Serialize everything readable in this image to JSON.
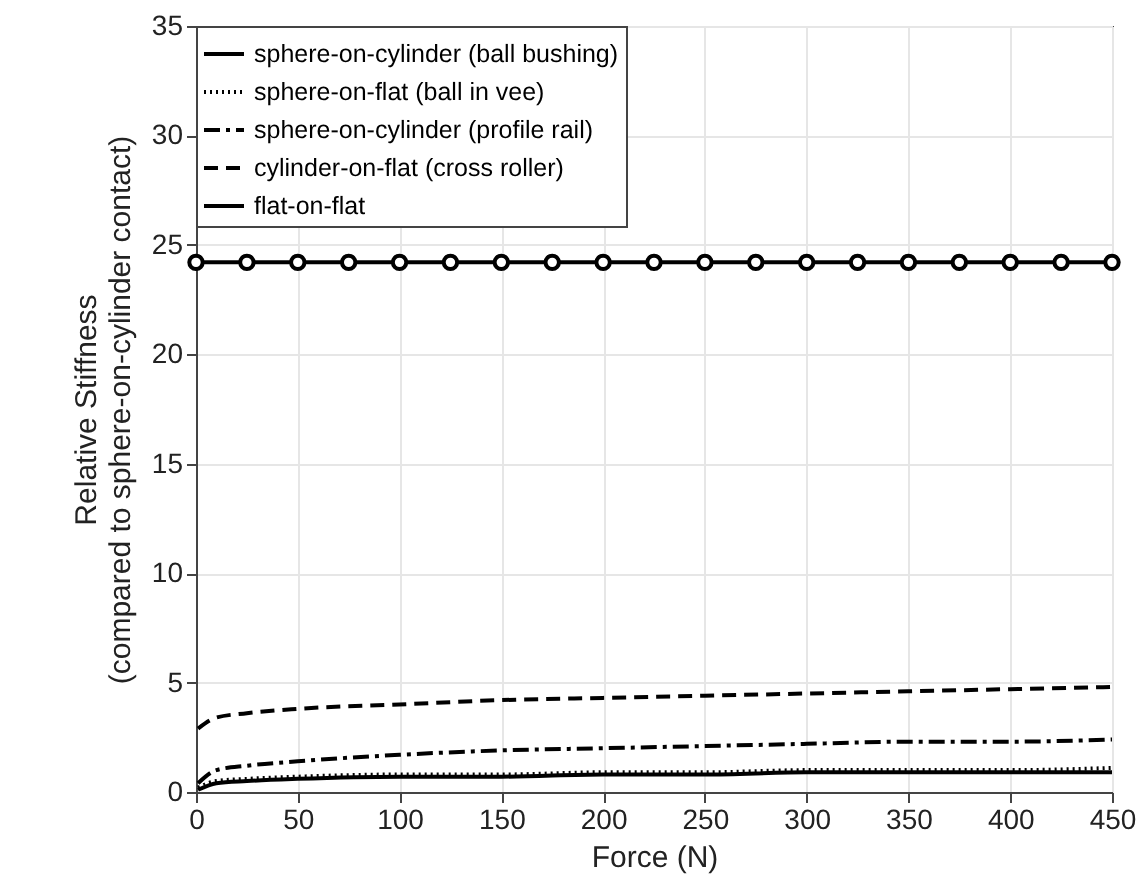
{
  "chart_data": {
    "type": "line",
    "xlabel": "Force (N)",
    "ylabel": "Relative Stiffness\n(compared to sphere-on-cylinder contact)",
    "xlim": [
      0,
      450
    ],
    "xticks": [
      0,
      50,
      100,
      150,
      200,
      250,
      300,
      350,
      400,
      450
    ],
    "ylim": [
      0,
      35
    ],
    "yticks": [
      0,
      5,
      10,
      15,
      20,
      25,
      30,
      35
    ],
    "grid": true,
    "legend": "top left",
    "series": [
      {
        "name": "sphere-on-cylinder (ball bushing)",
        "color": "#000000",
        "line_style": "solid",
        "marker": "none",
        "x": [
          1,
          10,
          25,
          50,
          100,
          150,
          200,
          250,
          300,
          350,
          400,
          450
        ],
        "values": [
          0.1,
          0.4,
          0.5,
          0.6,
          0.7,
          0.7,
          0.8,
          0.8,
          0.9,
          0.9,
          0.9,
          0.9
        ]
      },
      {
        "name": "sphere-on-flat (ball in vee)",
        "color": "#000000",
        "line_style": "dotted",
        "marker": "none",
        "x": [
          1,
          10,
          25,
          50,
          100,
          150,
          200,
          250,
          300,
          350,
          400,
          450
        ],
        "values": [
          0.2,
          0.5,
          0.6,
          0.7,
          0.8,
          0.8,
          0.9,
          0.9,
          1.0,
          1.0,
          1.0,
          1.1
        ]
      },
      {
        "name": "sphere-on-cylinder (profile rail)",
        "color": "#000000",
        "line_style": "dashdot",
        "marker": "none",
        "x": [
          1,
          10,
          25,
          50,
          100,
          150,
          200,
          250,
          300,
          350,
          400,
          450
        ],
        "values": [
          0.4,
          1.0,
          1.2,
          1.4,
          1.7,
          1.9,
          2.0,
          2.1,
          2.2,
          2.3,
          2.3,
          2.4
        ]
      },
      {
        "name": "cylinder-on-flat (cross roller)",
        "color": "#000000",
        "line_style": "dashed",
        "marker": "none",
        "x": [
          1,
          10,
          25,
          50,
          100,
          150,
          200,
          250,
          300,
          350,
          400,
          450
        ],
        "values": [
          2.9,
          3.4,
          3.6,
          3.8,
          4.0,
          4.2,
          4.3,
          4.4,
          4.5,
          4.6,
          4.7,
          4.8
        ]
      },
      {
        "name": "flat-on-flat",
        "color": "#000000",
        "line_style": "solid",
        "marker": "circle",
        "x": [
          0,
          25,
          50,
          75,
          100,
          125,
          150,
          175,
          200,
          225,
          250,
          275,
          300,
          325,
          350,
          375,
          400,
          425,
          450
        ],
        "values": [
          24.2,
          24.2,
          24.2,
          24.2,
          24.2,
          24.2,
          24.2,
          24.2,
          24.2,
          24.2,
          24.2,
          24.2,
          24.2,
          24.2,
          24.2,
          24.2,
          24.2,
          24.2,
          24.2
        ]
      }
    ]
  }
}
